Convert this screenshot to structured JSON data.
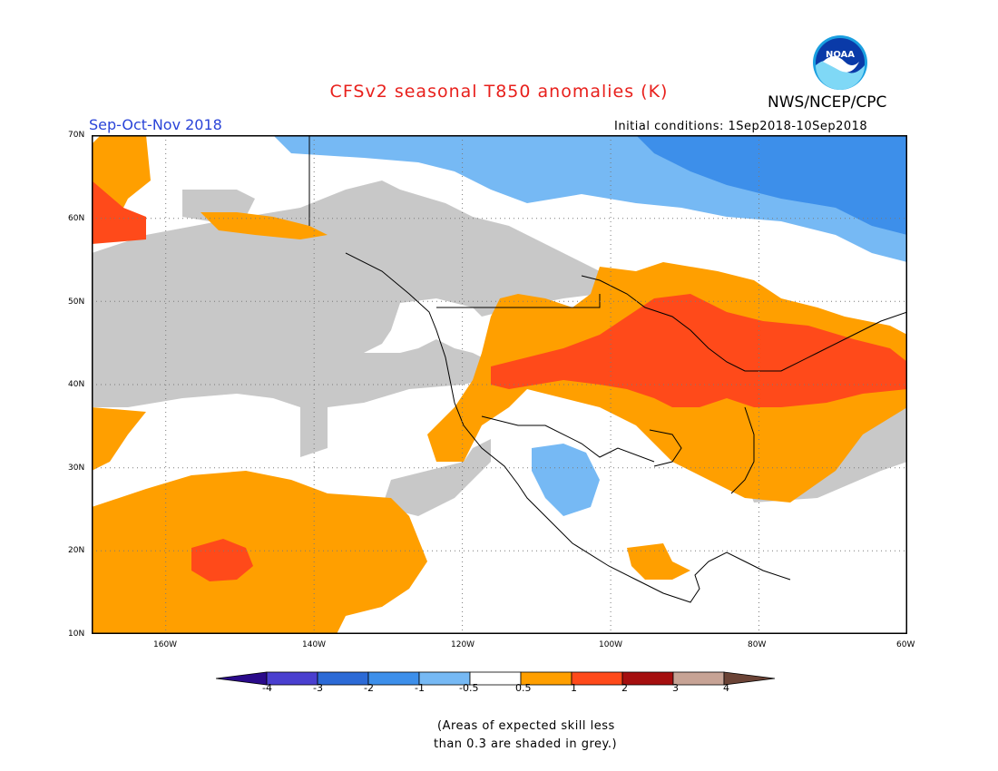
{
  "header": {
    "title": "CFSv2 seasonal T850 anomalies (K)",
    "agency": "NWS/NCEP/CPC",
    "season": "Sep-Oct-Nov 2018",
    "initial_conditions": "Initial conditions: 1Sep2018-10Sep2018",
    "logo_text": "NOAA"
  },
  "map": {
    "lat_labels": [
      "70N",
      "60N",
      "50N",
      "40N",
      "30N",
      "20N",
      "10N"
    ],
    "lon_labels": [
      "160W",
      "140W",
      "120W",
      "100W",
      "80W",
      "60W"
    ],
    "lat_range": [
      10,
      70
    ],
    "lon_range": [
      -170,
      -60
    ]
  },
  "legend": {
    "labels": [
      "-4",
      "-3",
      "-2",
      "-1",
      "-0.5",
      "0.5",
      "1",
      "2",
      "3",
      "4"
    ],
    "colors": [
      "#2a0a8a",
      "#4a3fcf",
      "#2c6ad6",
      "#3d8fea",
      "#76b9f4",
      "#ffffff",
      "#ff9f00",
      "#ff4a1a",
      "#a50f0f",
      "#c7a395",
      "#6b4336"
    ]
  },
  "notes": {
    "line1": "(Areas of expected skill less",
    "line2": "than 0.3 are shaded in grey.)"
  },
  "colors": {
    "grey_low_skill": "#c8c8c8",
    "orange": "#ff9f00",
    "red_orange": "#ff4a1a",
    "light_blue": "#76b9f4",
    "mid_blue": "#3d8fea"
  }
}
